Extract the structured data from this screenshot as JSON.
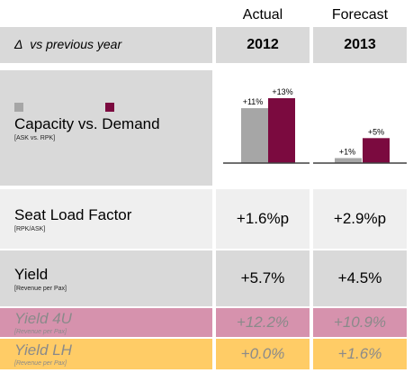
{
  "columns": {
    "actual_label": "Actual",
    "forecast_label": "Forecast",
    "actual_year": "2012",
    "forecast_year": "2013"
  },
  "header": {
    "delta_symbol": "Δ",
    "subtitle": "vs previous year"
  },
  "rows": {
    "capacity": {
      "label": "Capacity vs. Demand",
      "sub": "[ASK vs. RPK]"
    },
    "seat_load_factor": {
      "label": "Seat Load Factor",
      "sub": "[RPK/ASK]",
      "actual": "+1.6%p",
      "forecast": "+2.9%p"
    },
    "yield": {
      "label": "Yield",
      "sub": "[Revenue per Pax]",
      "actual": "+5.7%",
      "forecast": "+4.5%"
    },
    "yield_4u": {
      "label": "Yield 4U",
      "sub": "[Revenue per Pax]",
      "actual": "+12.2%",
      "forecast": "+10.9%"
    },
    "yield_lh": {
      "label": "Yield LH",
      "sub": "[Revenue per Pax]",
      "actual": "+0.0%",
      "forecast": "+1.6%"
    }
  },
  "colors": {
    "header_bg": "#d9d9d9",
    "row_gray": "#d9d9d9",
    "row_light": "#efefef",
    "row_4u": "#d692ad",
    "row_lh": "#ffcc66",
    "capacity_bar": "#a6a6a6",
    "demand_bar": "#7b0a3f"
  },
  "chart_data": {
    "type": "bar",
    "categories": [
      "2012",
      "2013"
    ],
    "series": [
      {
        "values": [
          11,
          1
        ]
      },
      {
        "values": [
          13,
          5
        ]
      }
    ],
    "data_labels": [
      [
        "+11%",
        "+1%"
      ],
      [
        "+13%",
        "+5%"
      ]
    ],
    "colors": [
      "#a6a6a6",
      "#7b0a3f"
    ],
    "ylim": [
      0,
      13
    ]
  }
}
